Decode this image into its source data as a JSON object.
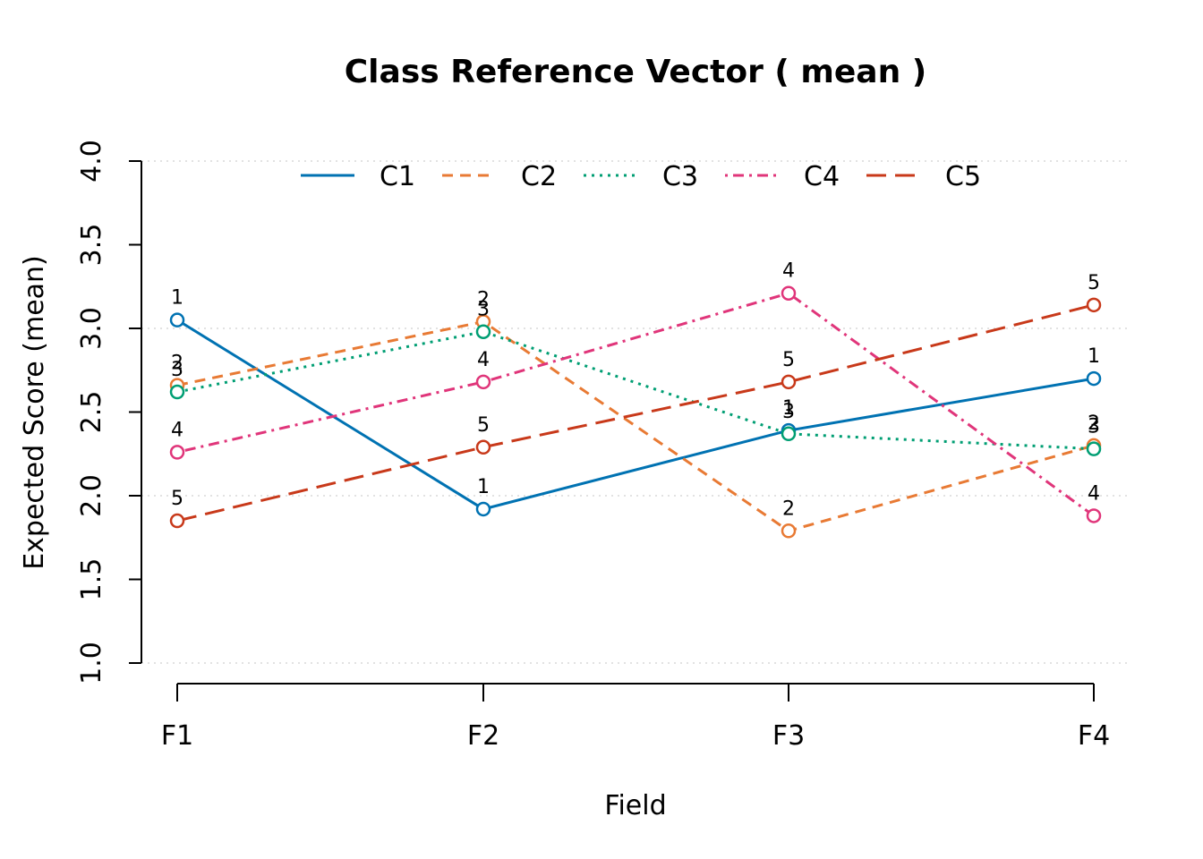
{
  "chart_data": {
    "type": "line",
    "title": "Class Reference Vector ( mean )",
    "xlabel": "Field",
    "ylabel": "Expected Score (mean)",
    "categories": [
      "F1",
      "F2",
      "F3",
      "F4"
    ],
    "ylim": [
      1.0,
      4.0
    ],
    "yticks": [
      "1.0",
      "1.5",
      "2.0",
      "2.5",
      "3.0",
      "3.5",
      "4.0"
    ],
    "grid": true,
    "legend_position": "top",
    "series": [
      {
        "name": "C1",
        "label": "1",
        "color": "#0072B2",
        "dash": "solid",
        "values": [
          3.05,
          1.92,
          2.39,
          2.7
        ]
      },
      {
        "name": "C2",
        "label": "2",
        "color": "#E87A34",
        "dash": "dashed",
        "values": [
          2.66,
          3.04,
          1.79,
          2.3
        ]
      },
      {
        "name": "C3",
        "label": "3",
        "color": "#009E73",
        "dash": "dotted",
        "values": [
          2.62,
          2.98,
          2.37,
          2.28
        ]
      },
      {
        "name": "C4",
        "label": "4",
        "color": "#E0357A",
        "dash": "dotdash",
        "values": [
          2.26,
          2.68,
          3.21,
          1.88
        ]
      },
      {
        "name": "C5",
        "label": "5",
        "color": "#C8391A",
        "dash": "longdash",
        "values": [
          1.85,
          2.29,
          2.68,
          3.14
        ]
      }
    ]
  }
}
